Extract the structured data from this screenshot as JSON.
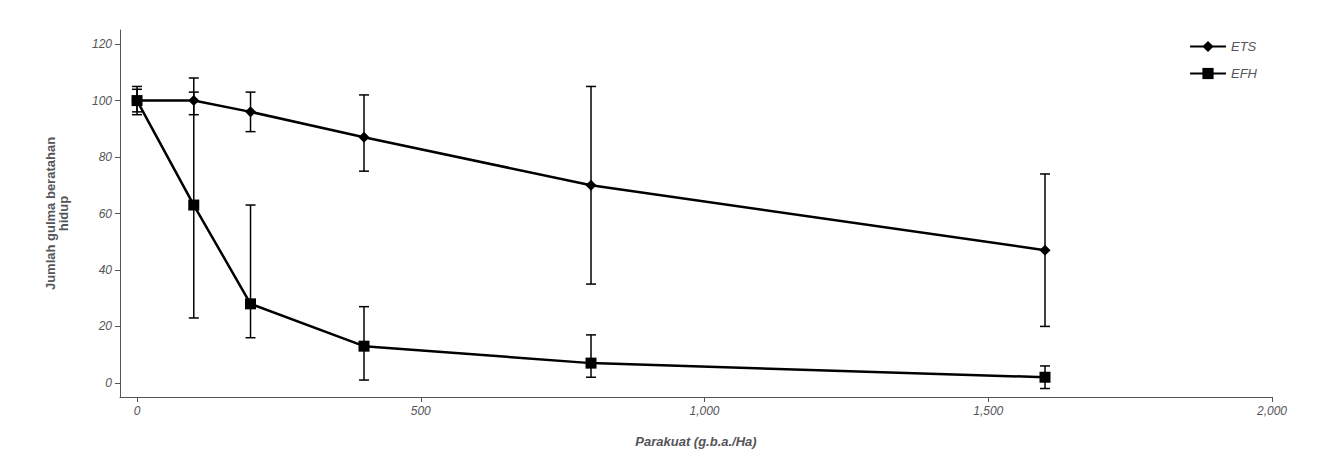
{
  "chart_data": {
    "type": "line",
    "xlabel": "Parakuat (g.b.a./Ha)",
    "ylabel": "Jumlah gulma beratahan\nhidup",
    "x": [
      0,
      100,
      200,
      400,
      800,
      1600
    ],
    "series": [
      {
        "name": "ETS",
        "color": "#000000",
        "marker": "diamond",
        "values": [
          100,
          100,
          96,
          87,
          70,
          47
        ],
        "error_lower": [
          5,
          5,
          7,
          12,
          35,
          27
        ],
        "error_upper": [
          5,
          8,
          7,
          15,
          35,
          27
        ]
      },
      {
        "name": "EFH",
        "color": "#000000",
        "marker": "square",
        "values": [
          100,
          63,
          28,
          13,
          7,
          2
        ],
        "error_lower": [
          4,
          40,
          12,
          12,
          5,
          4
        ],
        "error_upper": [
          4,
          40,
          35,
          14,
          10,
          4
        ]
      }
    ],
    "xlim": [
      -30,
      2000
    ],
    "ylim": [
      -5,
      125
    ],
    "xticks": [
      0,
      500,
      1000,
      1500,
      2000
    ],
    "yticks": [
      0,
      20,
      40,
      60,
      80,
      100,
      120
    ],
    "grid": false,
    "legend": "upper right"
  }
}
